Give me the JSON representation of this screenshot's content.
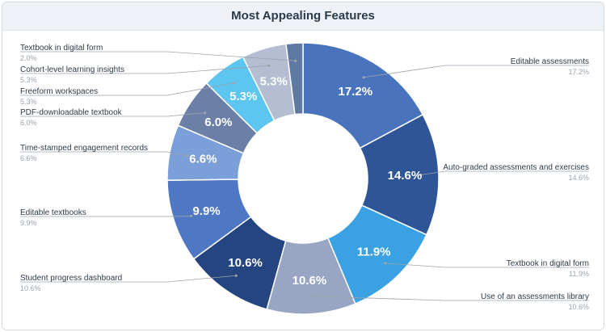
{
  "chart_data": {
    "type": "pie",
    "title": "Most Appealing Features",
    "donut": true,
    "legend": "none",
    "categories": [
      "Editable assessments",
      "Auto-graded assessments and exercises",
      "Textbook in digital form",
      "Use of an assessments library",
      "Student progress dashboard",
      "Editable textbooks",
      "Time-stamped engagement records",
      "PDF-downloadable textbook",
      "Freeform workspaces",
      "Cohort-level learning insights",
      "Textbook in digital form"
    ],
    "values": [
      17.2,
      14.6,
      11.9,
      10.6,
      10.6,
      9.9,
      6.6,
      6.0,
      5.3,
      5.3,
      2.0
    ],
    "value_labels": [
      "17.2%",
      "14.6%",
      "11.9%",
      "10.6%",
      "10.6%",
      "9.9%",
      "6.6%",
      "6.0%",
      "5.3%",
      "5.3%",
      ""
    ],
    "callout_labels": [
      "17.2%",
      "14.6%",
      "11.9%",
      "10.6%",
      "10.6%",
      "9.9%",
      "6.6%",
      "6.0%",
      "5.3%",
      "5.3%",
      "2.0%"
    ],
    "colors": [
      "#4a73be",
      "#2e5597",
      "#3aa1e2",
      "#98a6c3",
      "#24457f",
      "#4f78c4",
      "#7b9fd8",
      "#6c7fa6",
      "#5cc5f0",
      "#b4bdd1",
      "#5e79a3"
    ]
  }
}
